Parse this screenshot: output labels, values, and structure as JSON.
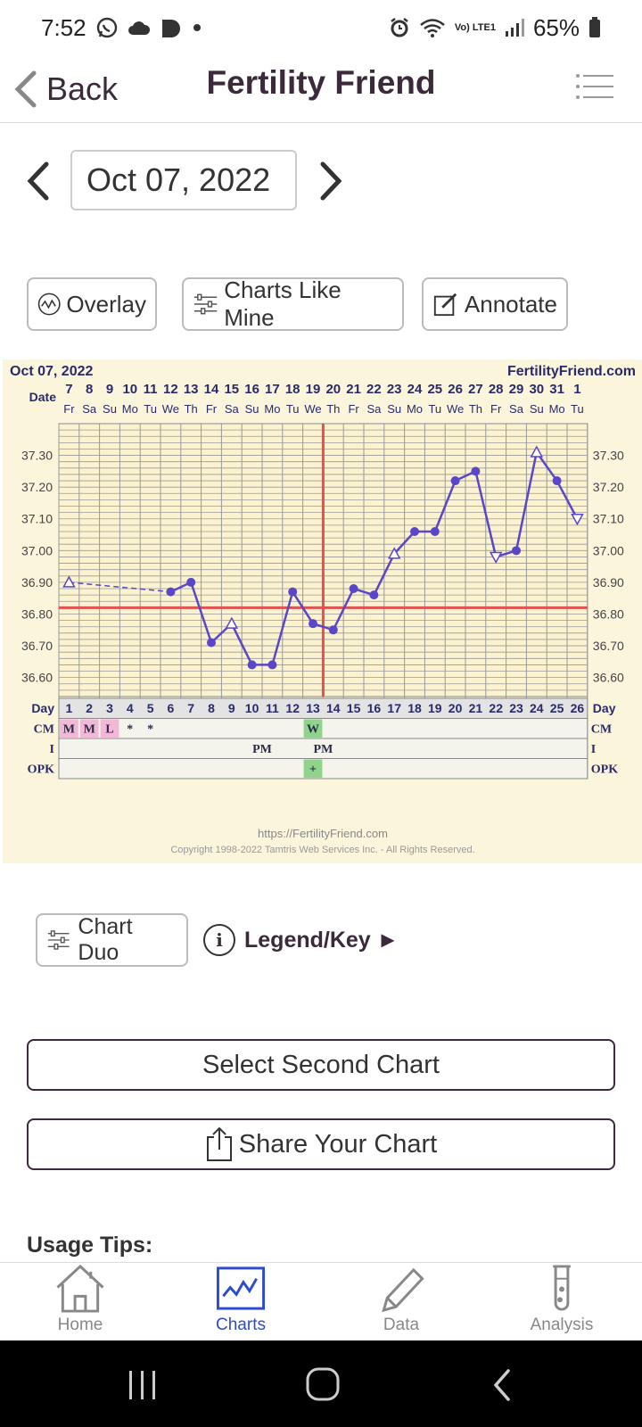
{
  "status_bar": {
    "time": "7:52",
    "battery": "65%",
    "network": "Vo) LTE1"
  },
  "header": {
    "back_label": "Back",
    "title": "Fertility Friend"
  },
  "date_nav": {
    "current_date": "Oct 07, 2022"
  },
  "actions": {
    "overlay": "Overlay",
    "charts_like_mine": "Charts Like Mine",
    "annotate": "Annotate"
  },
  "chart_data": {
    "type": "line",
    "title": "Oct 07, 2022",
    "brand": "FertilityFriend.com",
    "row_label_date": "Date",
    "row_label_day": "Day",
    "dates": [
      "7",
      "8",
      "9",
      "10",
      "11",
      "12",
      "13",
      "14",
      "15",
      "16",
      "17",
      "18",
      "19",
      "20",
      "21",
      "22",
      "23",
      "24",
      "25",
      "26",
      "27",
      "28",
      "29",
      "30",
      "31",
      "1"
    ],
    "weekdays": [
      "Fr",
      "Sa",
      "Su",
      "Mo",
      "Tu",
      "We",
      "Th",
      "Fr",
      "Sa",
      "Su",
      "Mo",
      "Tu",
      "We",
      "Th",
      "Fr",
      "Sa",
      "Su",
      "Mo",
      "Tu",
      "We",
      "Th",
      "Fr",
      "Sa",
      "Su",
      "Mo",
      "Tu"
    ],
    "cycle_days": [
      "1",
      "2",
      "3",
      "4",
      "5",
      "6",
      "7",
      "8",
      "9",
      "10",
      "11",
      "12",
      "13",
      "14",
      "15",
      "16",
      "17",
      "18",
      "19",
      "20",
      "21",
      "22",
      "23",
      "24",
      "25",
      "26"
    ],
    "y_ticks": [
      "37.30",
      "37.20",
      "37.10",
      "37.00",
      "36.90",
      "36.80",
      "36.70",
      "36.60"
    ],
    "ylim": [
      36.54,
      37.4
    ],
    "temperatures": [
      36.9,
      null,
      null,
      null,
      null,
      36.87,
      36.9,
      36.71,
      36.77,
      36.64,
      36.64,
      36.87,
      36.77,
      36.75,
      36.88,
      36.86,
      36.99,
      37.06,
      37.06,
      37.22,
      37.25,
      36.98,
      37.0,
      37.31,
      37.22,
      37.1
    ],
    "open_markers": [
      0,
      8,
      16
    ],
    "open_down_markers": [
      21,
      25
    ],
    "open_up_markers": [
      23
    ],
    "coverline": 36.82,
    "ovulation_day_index": 13,
    "accent_line_color": "#5a46c8",
    "cover_color": "#e05252",
    "grid_color": "#999999",
    "rows": [
      {
        "label": "CM",
        "cells": {
          "0": "M",
          "1": "M",
          "2": "L",
          "3": "*",
          "4": "*",
          "12": "W"
        }
      },
      {
        "label": "I",
        "cells": {
          "9": "PM",
          "12": "PM"
        }
      },
      {
        "label": "OPK",
        "cells": {
          "12": "+"
        }
      }
    ],
    "pink_cells": [
      0,
      1,
      2
    ],
    "green_cells_cm": [
      12
    ],
    "green_cells_opk": [
      12
    ],
    "footer_url": "https://FertilityFriend.com",
    "footer_copyright": "Copyright 1998-2022 Tamtris Web Services Inc. - All Rights Reserved."
  },
  "below_chart": {
    "chart_duo": "Chart Duo",
    "legend_key": "Legend/Key ►",
    "select_second": "Select Second Chart",
    "share_chart": "Share Your Chart",
    "usage_tips": "Usage Tips:"
  },
  "bottom_nav": {
    "items": [
      {
        "label": "Home",
        "icon": "home-icon"
      },
      {
        "label": "Charts",
        "icon": "charts-icon"
      },
      {
        "label": "Data",
        "icon": "pencil-icon"
      },
      {
        "label": "Analysis",
        "icon": "test-tube-icon"
      }
    ],
    "active_index": 1,
    "active_color": "#2e4ad0"
  }
}
